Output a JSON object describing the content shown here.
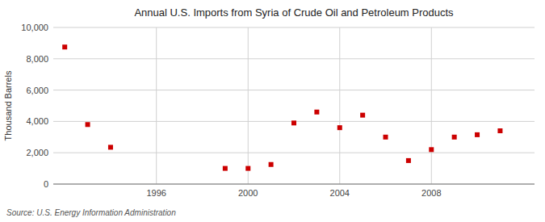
{
  "chart_data": {
    "type": "scatter",
    "title": "Annual U.S. Imports from Syria of Crude Oil and Petroleum Products",
    "y_label": "Thousand Barrels",
    "annotations": [
      "Source: U.S. Energy Information Administration"
    ],
    "x": [
      1992,
      1993,
      1994,
      1999,
      2000,
      2001,
      2002,
      2003,
      2004,
      2005,
      2006,
      2007,
      2008,
      2009,
      2010,
      2011
    ],
    "values": [
      8750,
      3800,
      2350,
      1000,
      1000,
      1250,
      3900,
      4600,
      3600,
      4400,
      3000,
      1500,
      2200,
      3000,
      3150,
      3400
    ],
    "color": "#cc0000",
    "marker": "square",
    "xlim": [
      1991.5,
      2012.5
    ],
    "ylim": [
      0,
      10000
    ],
    "xticks": [
      1996,
      2000,
      2004,
      2008
    ],
    "yticks": [
      0,
      {
        "value": 2000,
        "label": "2,000"
      },
      {
        "value": 4000,
        "label": "4,000"
      },
      {
        "value": 6000,
        "label": "6,000"
      },
      {
        "value": 8000,
        "label": "8,000"
      },
      {
        "value": 10000,
        "label": "10,000"
      }
    ],
    "grid": true
  }
}
